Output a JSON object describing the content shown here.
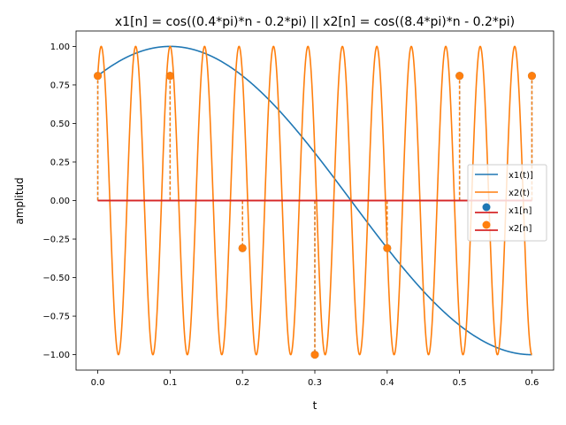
{
  "chart_data": {
    "type": "line",
    "title": "x1[n] = cos((0.4*pi)*n - 0.2*pi)  ||  x2[n] = cos((8.4*pi)*n - 0.2*pi)",
    "xlabel": "t",
    "ylabel": "amplitud",
    "xlim": [
      -0.03,
      0.63
    ],
    "ylim": [
      -1.1,
      1.1
    ],
    "x_ticks": [
      0.0,
      0.1,
      0.2,
      0.3,
      0.4,
      0.5,
      0.6
    ],
    "x_tick_labels": [
      "0.0",
      "0.1",
      "0.2",
      "0.3",
      "0.4",
      "0.5",
      "0.6"
    ],
    "y_ticks": [
      1.0,
      0.75,
      0.5,
      0.25,
      0.0,
      -0.25,
      -0.5,
      -0.75,
      -1.0
    ],
    "y_tick_labels": [
      "1.00",
      "0.75",
      "0.50",
      "0.25",
      "0.00",
      "−0.25",
      "−0.50",
      "−0.75",
      "−1.00"
    ],
    "grid": false,
    "legend_position": "center-right",
    "series": [
      {
        "name": "x1(t)]",
        "kind": "line",
        "color": "#1f77b4",
        "formula": "cos(2*pi*t - 0.2*pi)",
        "x_range": [
          0.0,
          0.6
        ]
      },
      {
        "name": "x2(t)",
        "kind": "line",
        "color": "#ff7f0e",
        "formula": "cos(42*pi*t - 0.2*pi)",
        "x_range": [
          0.0,
          0.6
        ]
      },
      {
        "name": "x1[n]",
        "kind": "stem",
        "marker_color": "#1f77b4",
        "baseline_color": "#d62728",
        "x": [
          0.0,
          0.1,
          0.2,
          0.3,
          0.4,
          0.5,
          0.6
        ],
        "y": [
          0.809,
          0.809,
          -0.309,
          -1.0,
          -0.309,
          0.809,
          0.809
        ]
      },
      {
        "name": "x2[n]",
        "kind": "stem",
        "marker_color": "#ff7f0e",
        "baseline_color": "#d62728",
        "x": [
          0.0,
          0.1,
          0.2,
          0.3,
          0.4,
          0.5,
          0.6
        ],
        "y": [
          0.809,
          0.809,
          -0.309,
          -1.0,
          -0.309,
          0.809,
          0.809
        ]
      }
    ]
  }
}
